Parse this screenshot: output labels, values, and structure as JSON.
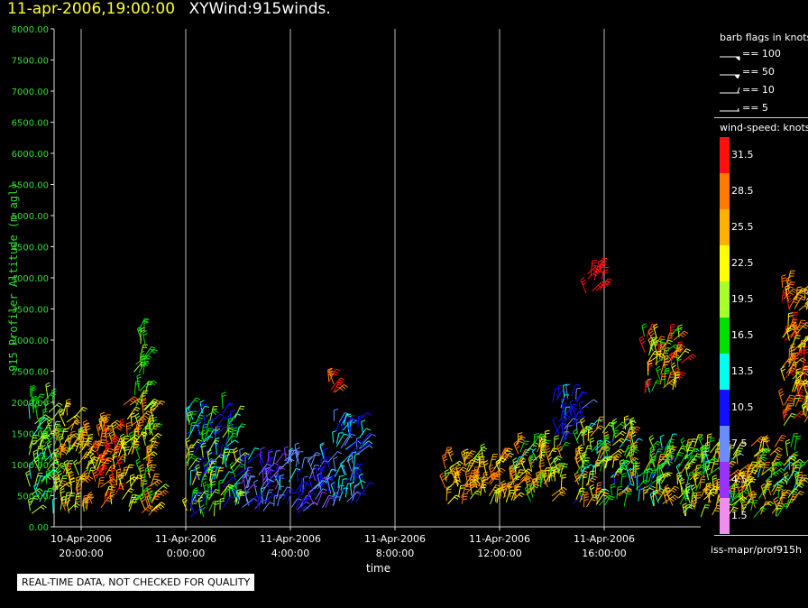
{
  "header": {
    "timestamp": "11-apr-2006,19:00:00",
    "product": "XYWind:915winds."
  },
  "chart_data": {
    "type": "scatter",
    "ylabel": "915 Profiler Altitude (m agl)",
    "xlabel": "time",
    "ylim": [
      0,
      8000
    ],
    "yticks": [
      "0.00",
      "500.00",
      "1000.00",
      "1500.00",
      "2000.00",
      "2500.00",
      "3000.00",
      "3500.00",
      "4000.00",
      "4500.00",
      "5000.00",
      "5500.00",
      "6000.00",
      "6500.00",
      "7000.00",
      "7500.00",
      "8000.00"
    ],
    "xticks": [
      {
        "date": "10-Apr-2006",
        "time": "20:00:00"
      },
      {
        "date": "11-Apr-2006",
        "time": "0:00:00"
      },
      {
        "date": "11-Apr-2006",
        "time": "4:00:00"
      },
      {
        "date": "11-Apr-2006",
        "time": "8:00:00"
      },
      {
        "date": "11-Apr-2006",
        "time": "12:00:00"
      },
      {
        "date": "11-Apr-2006",
        "time": "16:00:00"
      }
    ],
    "grid_x": true,
    "wind_clusters": [
      {
        "start_h": 18.0,
        "end_h": 19.0,
        "alt_lo": 200,
        "alt_hi": 2100,
        "spd_lo": 14,
        "spd_hi": 21
      },
      {
        "start_h": 19.0,
        "end_h": 20.3,
        "alt_lo": 200,
        "alt_hi": 1800,
        "spd_lo": 18,
        "spd_hi": 30
      },
      {
        "start_h": 20.3,
        "end_h": 21.6,
        "alt_lo": 300,
        "alt_hi": 1600,
        "spd_lo": 22,
        "spd_hi": 33
      },
      {
        "start_h": 21.6,
        "end_h": 22.8,
        "alt_lo": 150,
        "alt_hi": 2000,
        "spd_lo": 16,
        "spd_hi": 30
      },
      {
        "start_h": 22.0,
        "end_h": 22.5,
        "alt_lo": 2100,
        "alt_hi": 3150,
        "spd_lo": 16,
        "spd_hi": 19
      },
      {
        "start_h": 24.0,
        "end_h": 26.0,
        "alt_lo": 150,
        "alt_hi": 1900,
        "spd_lo": 9,
        "spd_hi": 22
      },
      {
        "start_h": 26.0,
        "end_h": 29.5,
        "alt_lo": 200,
        "alt_hi": 1100,
        "spd_lo": 4,
        "spd_hi": 13
      },
      {
        "start_h": 29.5,
        "end_h": 30.8,
        "alt_lo": 300,
        "alt_hi": 1700,
        "spd_lo": 6,
        "spd_hi": 15
      },
      {
        "start_h": 29.4,
        "end_h": 29.7,
        "alt_lo": 2150,
        "alt_hi": 2350,
        "spd_lo": 25,
        "spd_hi": 32
      },
      {
        "start_h": 33.8,
        "end_h": 36.8,
        "alt_lo": 350,
        "alt_hi": 1100,
        "spd_lo": 20,
        "spd_hi": 30
      },
      {
        "start_h": 36.5,
        "end_h": 38.4,
        "alt_lo": 400,
        "alt_hi": 1350,
        "spd_lo": 14,
        "spd_hi": 29
      },
      {
        "start_h": 38.0,
        "end_h": 39.2,
        "alt_lo": 1300,
        "alt_hi": 2100,
        "spd_lo": 8,
        "spd_hi": 13
      },
      {
        "start_h": 39.2,
        "end_h": 40.0,
        "alt_lo": 3750,
        "alt_hi": 4150,
        "spd_lo": 31,
        "spd_hi": 33
      },
      {
        "start_h": 38.8,
        "end_h": 41.2,
        "alt_lo": 300,
        "alt_hi": 1600,
        "spd_lo": 11,
        "spd_hi": 28
      },
      {
        "start_h": 41.2,
        "end_h": 43.2,
        "alt_lo": 300,
        "alt_hi": 1300,
        "spd_lo": 11,
        "spd_hi": 27
      },
      {
        "start_h": 41.5,
        "end_h": 43.0,
        "alt_lo": 2100,
        "alt_hi": 3100,
        "spd_lo": 14,
        "spd_hi": 33
      },
      {
        "start_h": 43.0,
        "end_h": 47.5,
        "alt_lo": 150,
        "alt_hi": 1300,
        "spd_lo": 14,
        "spd_hi": 28
      },
      {
        "start_h": 46.8,
        "end_h": 48.2,
        "alt_lo": 1600,
        "alt_hi": 3900,
        "spd_lo": 19,
        "spd_hi": 33
      },
      {
        "start_h": 48.0,
        "end_h": 48.7,
        "alt_lo": 500,
        "alt_hi": 2400,
        "spd_lo": 8,
        "spd_hi": 17
      }
    ],
    "time_axis": {
      "first_tick_h": 20,
      "tick_step_h": 4
    }
  },
  "legend": {
    "barb_title": "barb flags in knots",
    "barbs": [
      {
        "label": "== 100"
      },
      {
        "label": "== 50"
      },
      {
        "label": "== 10"
      },
      {
        "label": "== 5"
      }
    ],
    "speed_title": "wind-speed: knots",
    "colorbar": [
      {
        "label": "31.5",
        "color": "#ff1010"
      },
      {
        "label": "28.5",
        "color": "#ff7a00"
      },
      {
        "label": "25.5",
        "color": "#ffb000"
      },
      {
        "label": "22.5",
        "color": "#ffff00"
      },
      {
        "label": "19.5",
        "color": "#a8ff2a"
      },
      {
        "label": "16.5",
        "color": "#00e000"
      },
      {
        "label": "13.5",
        "color": "#00ffee"
      },
      {
        "label": "10.5",
        "color": "#1010ff"
      },
      {
        "label": "7.5",
        "color": "#6a8cff"
      },
      {
        "label": "4.5",
        "color": "#9a32ff"
      },
      {
        "label": "1.5",
        "color": "#f08ef0"
      }
    ],
    "footer": "iss-mapr/prof915h"
  },
  "notice": "REAL-TIME DATA, NOT CHECKED FOR QUALITY"
}
